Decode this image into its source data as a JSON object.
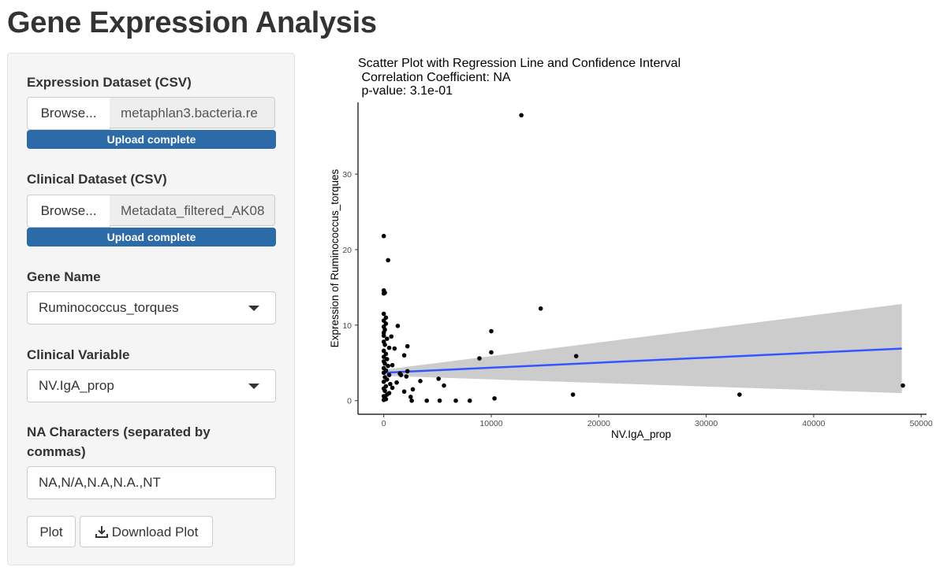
{
  "page_title": "Gene Expression Analysis",
  "sidebar": {
    "expression_label": "Expression Dataset (CSV)",
    "expression_browse": "Browse...",
    "expression_file": "metaphlan3.bacteria.re",
    "expression_progress": "Upload complete",
    "expression_progress_value": 1.0,
    "clinical_label": "Clinical Dataset (CSV)",
    "clinical_browse": "Browse...",
    "clinical_file": "Metadata_filtered_AK08",
    "clinical_progress": "Upload complete",
    "clinical_progress_value": 1.0,
    "gene_label": "Gene Name",
    "gene_value": "Ruminococcus_torques",
    "clinical_var_label": "Clinical Variable",
    "clinical_var_value": "NV.IgA_prop",
    "na_label_line1": "NA Characters (separated by",
    "na_label_line2": "commas)",
    "na_value": "NA,N/A,N.A,N.A.,NT",
    "plot_button": "Plot",
    "download_button": "Download Plot",
    "download_icon": "download-icon"
  },
  "colors": {
    "progress": "#2c6aa8",
    "regression_line": "#3355ff",
    "confidence_band": "#cccccc",
    "points": "#000000"
  },
  "chart_data": {
    "type": "scatter",
    "title_lines": [
      "Scatter Plot with Regression Line and Confidence Interval",
      " Correlation Coefficient: NA",
      " p-value: 3.1e-01"
    ],
    "xlabel": "NV.IgA_prop",
    "ylabel": "Expression of Ruminococcus_torques",
    "xlim": [
      -2400,
      50500
    ],
    "ylim": [
      -1.8,
      39.5
    ],
    "xticks": [
      0,
      10000,
      20000,
      30000,
      40000,
      50000
    ],
    "yticks": [
      0,
      10,
      20,
      30
    ],
    "grid": false,
    "regression": {
      "x0": 0,
      "y0": 3.7,
      "x1": 48200,
      "y1": 6.9
    },
    "confidence_band": {
      "x": [
        0,
        48200
      ],
      "upper": [
        4.1,
        12.8
      ],
      "lower": [
        3.3,
        1.0
      ]
    },
    "points": [
      [
        12800,
        37.8
      ],
      [
        0,
        21.8
      ],
      [
        400,
        18.6
      ],
      [
        0,
        14.6
      ],
      [
        100,
        14.3
      ],
      [
        14600,
        12.2
      ],
      [
        0,
        11.5
      ],
      [
        200,
        11.0
      ],
      [
        1300,
        9.9
      ],
      [
        10000,
        9.2
      ],
      [
        0,
        9.0
      ],
      [
        700,
        8.5
      ],
      [
        2200,
        7.2
      ],
      [
        1000,
        6.9
      ],
      [
        10000,
        6.4
      ],
      [
        1900,
        6.0
      ],
      [
        17900,
        5.9
      ],
      [
        8900,
        5.6
      ],
      [
        800,
        4.7
      ],
      [
        2200,
        3.9
      ],
      [
        1600,
        3.4
      ],
      [
        5100,
        2.9
      ],
      [
        3400,
        2.6
      ],
      [
        5600,
        2.0
      ],
      [
        2700,
        1.5
      ],
      [
        1900,
        1.2
      ],
      [
        17600,
        0.8
      ],
      [
        33100,
        0.8
      ],
      [
        48300,
        2.0
      ],
      [
        10300,
        0.3
      ],
      [
        2600,
        0
      ],
      [
        4000,
        0
      ],
      [
        5200,
        0
      ],
      [
        6700,
        0
      ],
      [
        8000,
        0
      ],
      [
        0,
        0.1
      ],
      [
        200,
        0.2
      ],
      [
        100,
        0.4
      ],
      [
        0,
        0.6
      ],
      [
        300,
        0.8
      ],
      [
        500,
        1.0
      ],
      [
        100,
        1.3
      ],
      [
        0,
        1.6
      ],
      [
        200,
        1.9
      ],
      [
        600,
        2.2
      ],
      [
        0,
        2.5
      ],
      [
        300,
        2.8
      ],
      [
        100,
        3.1
      ],
      [
        500,
        3.4
      ],
      [
        0,
        3.7
      ],
      [
        200,
        4.0
      ],
      [
        0,
        4.3
      ],
      [
        400,
        4.6
      ],
      [
        100,
        4.9
      ],
      [
        0,
        5.2
      ],
      [
        300,
        5.5
      ],
      [
        0,
        5.8
      ],
      [
        200,
        6.2
      ],
      [
        0,
        6.6
      ],
      [
        500,
        7.0
      ],
      [
        100,
        7.4
      ],
      [
        0,
        7.8
      ],
      [
        300,
        8.2
      ],
      [
        0,
        8.6
      ],
      [
        100,
        9.4
      ],
      [
        0,
        9.8
      ],
      [
        200,
        10.2
      ],
      [
        0,
        10.6
      ],
      [
        1200,
        2.4
      ],
      [
        800,
        1.7
      ],
      [
        1500,
        3.6
      ],
      [
        2100,
        3.2
      ],
      [
        2500,
        0.5
      ],
      [
        0,
        14.2
      ]
    ]
  }
}
